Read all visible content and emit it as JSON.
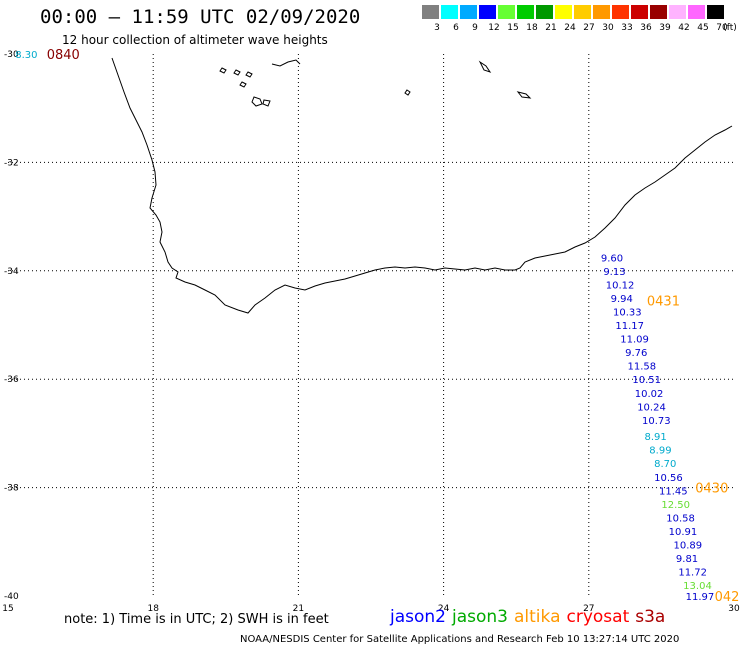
{
  "header": {
    "title": "00:00 – 11:59 UTC 02/09/2020",
    "subtitle": "12 hour collection of altimeter wave heights"
  },
  "scale": {
    "unit": "(ft)",
    "colors": [
      "#808080",
      "#00ffff",
      "#00aaff",
      "#0000ff",
      "#66ff33",
      "#00cc00",
      "#009900",
      "#ffff00",
      "#ffcc00",
      "#ff9900",
      "#ff3300",
      "#cc0000",
      "#990000",
      "#ffb3ff",
      "#ff66ff",
      "#000000"
    ],
    "labels": [
      "3",
      "6",
      "9",
      "12",
      "15",
      "18",
      "21",
      "24",
      "27",
      "30",
      "33",
      "36",
      "39",
      "42",
      "45",
      "70"
    ]
  },
  "axes": {
    "lon_ticks": [
      "15",
      "18",
      "21",
      "24",
      "27",
      "30"
    ],
    "lat_ticks": [
      "-30",
      "-32",
      "-34",
      "-36",
      "-38",
      "-40"
    ]
  },
  "observations": [
    {
      "v": "8.30",
      "lon": 15.15,
      "lat": -30.0,
      "c": "#00aacc"
    },
    {
      "v": "9.60",
      "lon": 27.25,
      "lat": -33.75,
      "c": "#0000cc"
    },
    {
      "v": "9.13",
      "lon": 27.3,
      "lat": -34.0,
      "c": "#0000cc"
    },
    {
      "v": "10.12",
      "lon": 27.35,
      "lat": -34.25,
      "c": "#0000cc"
    },
    {
      "v": "9.94",
      "lon": 27.45,
      "lat": -34.5,
      "c": "#0000cc"
    },
    {
      "v": "10.33",
      "lon": 27.5,
      "lat": -34.75,
      "c": "#0000cc"
    },
    {
      "v": "11.17",
      "lon": 27.55,
      "lat": -35.0,
      "c": "#0000cc"
    },
    {
      "v": "11.09",
      "lon": 27.65,
      "lat": -35.25,
      "c": "#0000cc"
    },
    {
      "v": "9.76",
      "lon": 27.75,
      "lat": -35.5,
      "c": "#0000cc"
    },
    {
      "v": "11.58",
      "lon": 27.8,
      "lat": -35.75,
      "c": "#0000cc"
    },
    {
      "v": "10.51",
      "lon": 27.9,
      "lat": -36.0,
      "c": "#0000cc"
    },
    {
      "v": "10.02",
      "lon": 27.95,
      "lat": -36.25,
      "c": "#0000cc"
    },
    {
      "v": "10.24",
      "lon": 28.0,
      "lat": -36.5,
      "c": "#0000cc"
    },
    {
      "v": "10.73",
      "lon": 28.1,
      "lat": -36.75,
      "c": "#0000cc"
    },
    {
      "v": "8.91",
      "lon": 28.15,
      "lat": -37.05,
      "c": "#00aacc"
    },
    {
      "v": "8.99",
      "lon": 28.25,
      "lat": -37.3,
      "c": "#00aacc"
    },
    {
      "v": "8.70",
      "lon": 28.35,
      "lat": -37.55,
      "c": "#00aacc"
    },
    {
      "v": "10.56",
      "lon": 28.35,
      "lat": -37.8,
      "c": "#0000cc"
    },
    {
      "v": "11.45",
      "lon": 28.45,
      "lat": -38.05,
      "c": "#0000cc"
    },
    {
      "v": "12.50",
      "lon": 28.5,
      "lat": -38.3,
      "c": "#66dd33"
    },
    {
      "v": "10.58",
      "lon": 28.6,
      "lat": -38.55,
      "c": "#0000cc"
    },
    {
      "v": "10.91",
      "lon": 28.65,
      "lat": -38.8,
      "c": "#0000cc"
    },
    {
      "v": "10.89",
      "lon": 28.75,
      "lat": -39.05,
      "c": "#0000cc"
    },
    {
      "v": "9.81",
      "lon": 28.8,
      "lat": -39.3,
      "c": "#0000cc"
    },
    {
      "v": "11.72",
      "lon": 28.85,
      "lat": -39.55,
      "c": "#0000cc"
    },
    {
      "v": "13.04",
      "lon": 28.95,
      "lat": -39.8,
      "c": "#66dd33"
    },
    {
      "v": "11.97",
      "lon": 29.0,
      "lat": -40.0,
      "c": "#0000cc"
    }
  ],
  "time_labels": [
    {
      "t": "0840",
      "lon": 15.8,
      "lat": -30.0,
      "c": "#880000"
    },
    {
      "t": "0431",
      "lon": 28.2,
      "lat": -34.55,
      "c": "#ff9900"
    },
    {
      "t": "0430",
      "lon": 29.2,
      "lat": -38.0,
      "c": "#ff9900"
    },
    {
      "t": "042",
      "lon": 29.6,
      "lat": -40.0,
      "c": "#ff9900"
    }
  ],
  "footer": {
    "note": "note:  1) Time is in UTC; 2) SWH is in feet",
    "legend": [
      {
        "name": "jason2",
        "color": "#0000ff"
      },
      {
        "name": "jason3",
        "color": "#00aa00"
      },
      {
        "name": "altika",
        "color": "#ff9900"
      },
      {
        "name": "cryosat",
        "color": "#ff0000"
      },
      {
        "name": "s3a",
        "color": "#aa0000"
      }
    ],
    "credit": "NOAA/NESDIS Center for Satellite Applications and Research    Feb 10 13:27:14 UTC 2020"
  }
}
